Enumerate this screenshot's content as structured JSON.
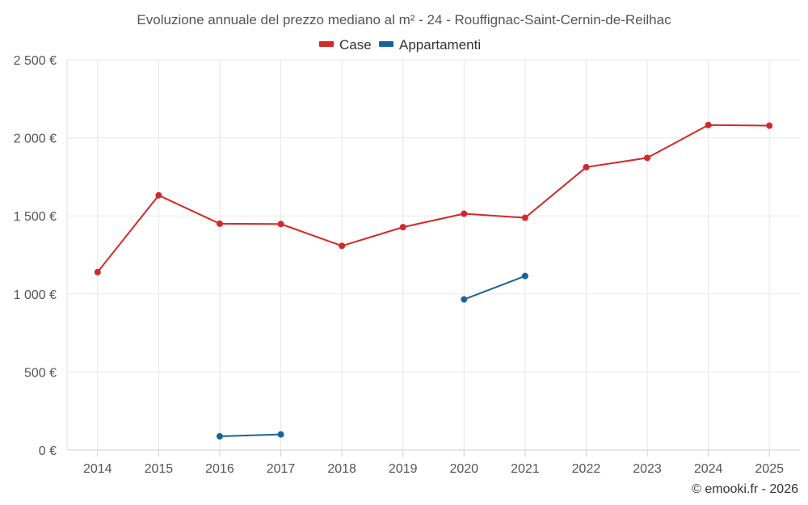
{
  "chart_data": {
    "type": "line",
    "title": "Evoluzione annuale del prezzo mediano al m² - 24 - Rouffignac-Saint-Cernin-de-Reilhac",
    "categories": [
      "2014",
      "2015",
      "2016",
      "2017",
      "2018",
      "2019",
      "2020",
      "2021",
      "2022",
      "2023",
      "2024",
      "2025"
    ],
    "y_tick_labels": [
      "0 €",
      "500 €",
      "1 000 €",
      "1 500 €",
      "2 000 €",
      "2 500 €"
    ],
    "y_ticks": [
      0,
      500,
      1000,
      1500,
      2000,
      2500
    ],
    "ylim": [
      0,
      2500
    ],
    "grid": true,
    "legend_position": "top-center",
    "series": [
      {
        "name": "Case",
        "color": "#d62728",
        "values": [
          1140,
          1632,
          1450,
          1448,
          1308,
          1428,
          1514,
          1488,
          1812,
          1872,
          2082,
          2078
        ]
      },
      {
        "name": "Appartamenti",
        "color": "#17649a",
        "values": [
          null,
          null,
          88,
          100,
          null,
          null,
          965,
          1115,
          null,
          null,
          null,
          null
        ]
      }
    ],
    "credit": "© emooki.fr - 2026"
  }
}
